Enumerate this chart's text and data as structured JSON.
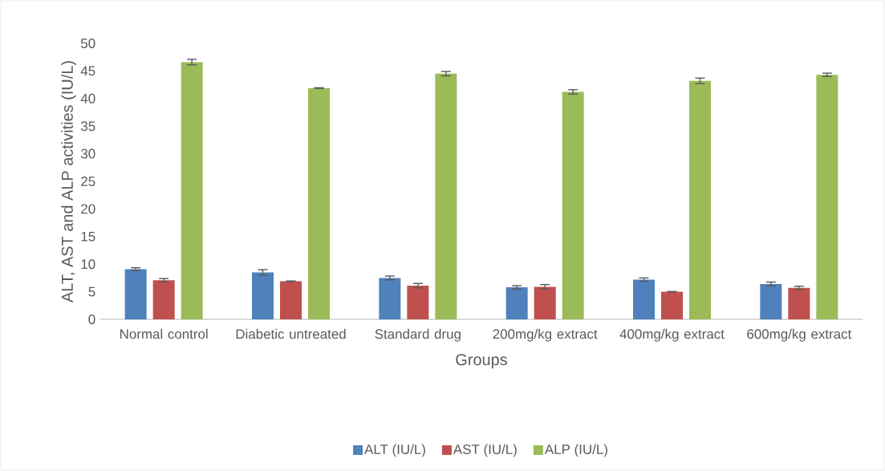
{
  "chart_data": {
    "type": "bar",
    "xlabel": "Groups",
    "ylabel": "ALT, AST and ALP activities (IU/L)",
    "categories": [
      "Normal control",
      "Diabetic untreated",
      "Standard drug",
      "200mg/kg extract",
      "400mg/kg extract",
      "600mg/kg extract"
    ],
    "series": [
      {
        "name": "ALT (IU/L)",
        "color": "#4f81bd",
        "values": [
          9.1,
          8.5,
          7.5,
          5.8,
          7.2,
          6.4
        ],
        "errors": [
          0.25,
          0.5,
          0.35,
          0.3,
          0.3,
          0.35
        ]
      },
      {
        "name": "AST (IU/L)",
        "color": "#c0504d",
        "values": [
          7.1,
          6.9,
          6.1,
          5.9,
          5.0,
          5.7
        ],
        "errors": [
          0.3,
          0.05,
          0.4,
          0.4,
          0.05,
          0.3
        ]
      },
      {
        "name": "ALP (IU/L)",
        "color": "#9bbb59",
        "values": [
          46.6,
          41.9,
          44.5,
          41.2,
          43.2,
          44.3
        ],
        "errors": [
          0.5,
          0.05,
          0.4,
          0.4,
          0.5,
          0.3
        ]
      }
    ],
    "ylim": [
      0,
      50
    ],
    "yticks": [
      0,
      5,
      10,
      15,
      20,
      25,
      30,
      35,
      40,
      45,
      50
    ],
    "grid": false,
    "legend": "bottom"
  }
}
